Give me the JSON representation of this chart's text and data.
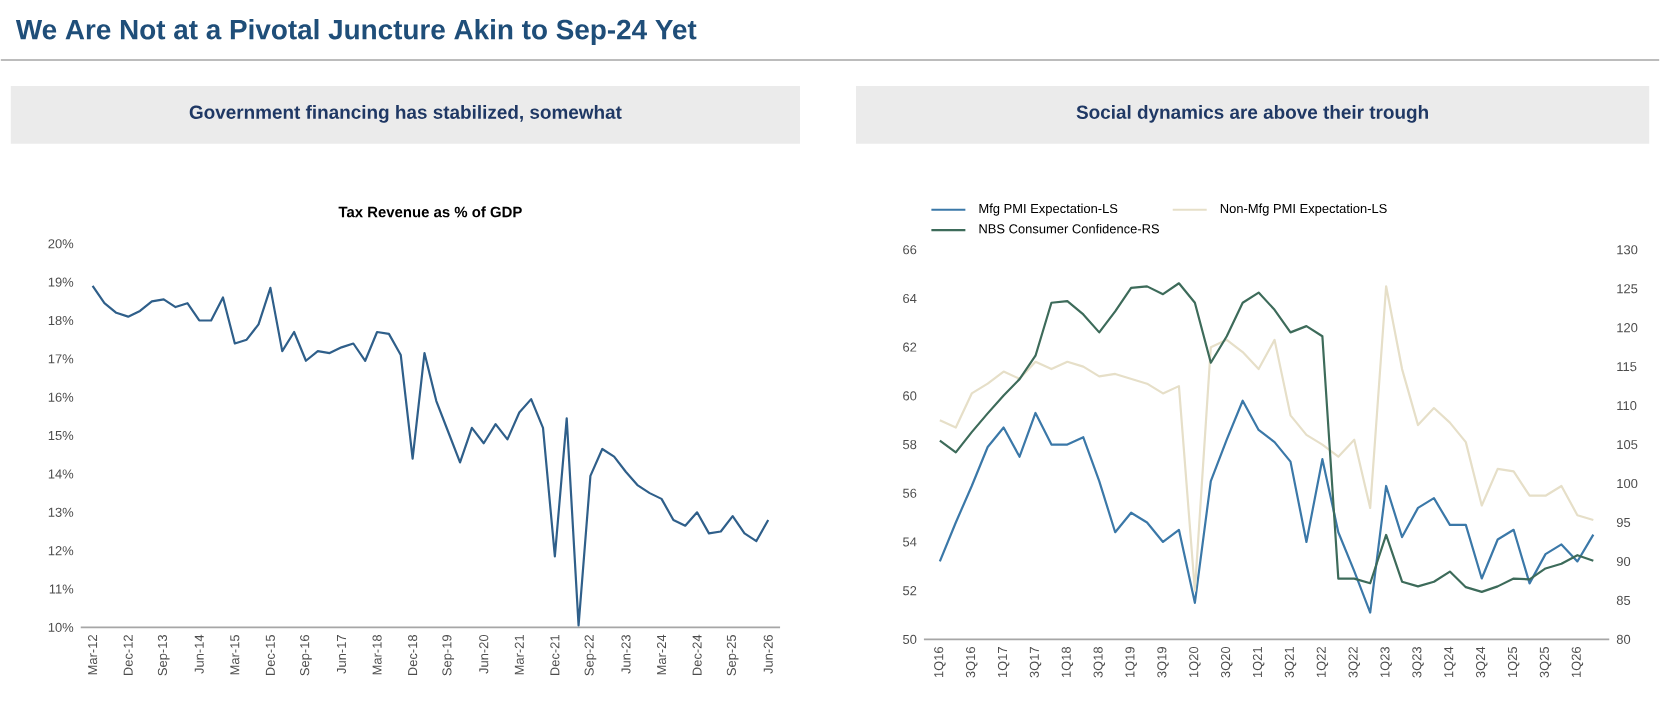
{
  "chart_data": [
    {
      "type": "other",
      "title": "We Are Not at a Pivotal Juncture Akin to Sep-24 Yet"
    },
    {
      "type": "line",
      "title": "Government financing has stabilized, somewhat",
      "subtitle": "Tax Revenue as % of GDP",
      "categories": [
        "Mar-12",
        null,
        null,
        "Dec-12",
        null,
        null,
        "Sep-13",
        null,
        null,
        "Jun-14",
        null,
        null,
        "Mar-15",
        null,
        null,
        "Dec-15",
        null,
        null,
        "Sep-16",
        null,
        null,
        "Jun-17",
        null,
        null,
        "Mar-18",
        null,
        null,
        "Dec-18",
        null,
        null,
        "Sep-19",
        null,
        null,
        "Jun-20",
        null,
        null,
        "Mar-21",
        null,
        null,
        "Dec-21",
        null,
        null,
        "Sep-22",
        null,
        null,
        "Jun-23",
        null,
        null,
        "Mar-24",
        null,
        null,
        "Dec-24",
        null,
        null,
        "Sep-25",
        null,
        null,
        "Jun-26"
      ],
      "values": [
        18.9,
        18.45,
        18.2,
        18.1,
        18.25,
        18.5,
        18.55,
        18.35,
        18.45,
        18.0,
        18.0,
        18.6,
        17.4,
        17.5,
        17.9,
        18.85,
        17.2,
        17.7,
        16.95,
        17.2,
        17.15,
        17.3,
        17.4,
        16.95,
        17.7,
        17.65,
        17.1,
        14.4,
        17.15,
        15.9,
        15.1,
        14.3,
        15.2,
        14.8,
        15.3,
        14.9,
        15.6,
        15.95,
        15.2,
        11.85,
        15.45,
        10.05,
        13.95,
        14.65,
        14.45,
        14.05,
        13.7,
        13.5,
        13.35,
        12.8,
        12.65,
        13.0,
        12.45,
        12.5,
        12.9,
        12.45,
        12.25,
        12.8
      ],
      "color": "#2f5f8a",
      "line_style": "solid",
      "ylim": [
        10,
        20
      ],
      "yticks": [
        {
          "value": 10,
          "label": "10%"
        },
        {
          "value": 11,
          "label": "11%"
        },
        {
          "value": 12,
          "label": "12%"
        },
        {
          "value": 13,
          "label": "13%"
        },
        {
          "value": 14,
          "label": "14%"
        },
        {
          "value": 15,
          "label": "15%"
        },
        {
          "value": 16,
          "label": "16%"
        },
        {
          "value": 17,
          "label": "17%"
        },
        {
          "value": 18,
          "label": "18%"
        },
        {
          "value": 19,
          "label": "19%"
        },
        {
          "value": 20,
          "label": "20%"
        }
      ]
    },
    {
      "type": "line",
      "title": "Social dynamics are above their trough",
      "categories": [
        "1Q16",
        null,
        "3Q16",
        null,
        "1Q17",
        null,
        "3Q17",
        null,
        "1Q18",
        null,
        "3Q18",
        null,
        "1Q19",
        null,
        "3Q19",
        null,
        "1Q20",
        null,
        "3Q20",
        null,
        "1Q21",
        null,
        "3Q21",
        null,
        "1Q22",
        null,
        "3Q22",
        null,
        "1Q23",
        null,
        "3Q23",
        null,
        "1Q24",
        null,
        "3Q24",
        null,
        "1Q25",
        null,
        "3Q25",
        null,
        "1Q26",
        null
      ],
      "series": [
        {
          "name": "Mfg PMI Expectation-LS",
          "color": "#3b78a8",
          "values": [
            53.2,
            54.8,
            56.3,
            57.9,
            58.7,
            57.5,
            59.3,
            58.0,
            58.0,
            58.3,
            56.5,
            54.4,
            55.2,
            54.8,
            54.0,
            54.5,
            51.5,
            56.5,
            58.2,
            59.8,
            58.6,
            58.1,
            57.3,
            54.0,
            57.4,
            54.4,
            52.8,
            51.1,
            56.3,
            54.2,
            55.4,
            55.8,
            54.7,
            54.7,
            52.5,
            54.1,
            54.5,
            52.3,
            53.5,
            53.9,
            53.2,
            54.3
          ]
        },
        {
          "name": "Non-Mfg PMI Expectation-LS",
          "color": "#e6dfc8",
          "values": [
            59.0,
            58.7,
            60.1,
            60.5,
            61.0,
            60.7,
            61.4,
            61.1,
            61.4,
            61.2,
            60.8,
            60.9,
            60.7,
            60.5,
            60.1,
            60.4,
            52.0,
            62.0,
            62.3,
            61.8,
            61.1,
            62.3,
            59.2,
            58.4,
            58.0,
            57.5,
            58.2,
            55.4,
            64.5,
            61.1,
            58.8,
            59.5,
            58.9,
            58.1,
            55.5,
            57.0,
            56.9,
            55.9,
            55.9,
            56.3,
            55.1,
            54.9
          ]
        },
        {
          "name": "NBS Consumer Confidence-RS",
          "color": "#3d6b5a",
          "axis": "y2",
          "values": [
            105.5,
            104.0,
            106.6,
            109.0,
            111.3,
            113.4,
            116.4,
            123.2,
            123.4,
            121.7,
            119.4,
            122.1,
            125.1,
            125.3,
            124.3,
            125.7,
            123.2,
            115.5,
            118.9,
            123.2,
            124.5,
            122.3,
            119.4,
            120.2,
            118.9,
            87.8,
            87.8,
            87.2,
            93.4,
            87.4,
            86.8,
            87.4,
            88.7,
            86.7,
            86.1,
            86.8,
            87.8,
            87.7,
            89.1,
            89.7,
            90.8,
            90.1
          ]
        }
      ],
      "line_style": "solid",
      "legend": "top left",
      "ylim": [
        50,
        66
      ],
      "yticks": [
        50,
        52,
        54,
        56,
        58,
        60,
        62,
        64,
        66
      ],
      "y2lim": [
        80,
        130
      ],
      "y2ticks": [
        80,
        85,
        90,
        95,
        100,
        105,
        110,
        115,
        120,
        125,
        130
      ]
    }
  ]
}
